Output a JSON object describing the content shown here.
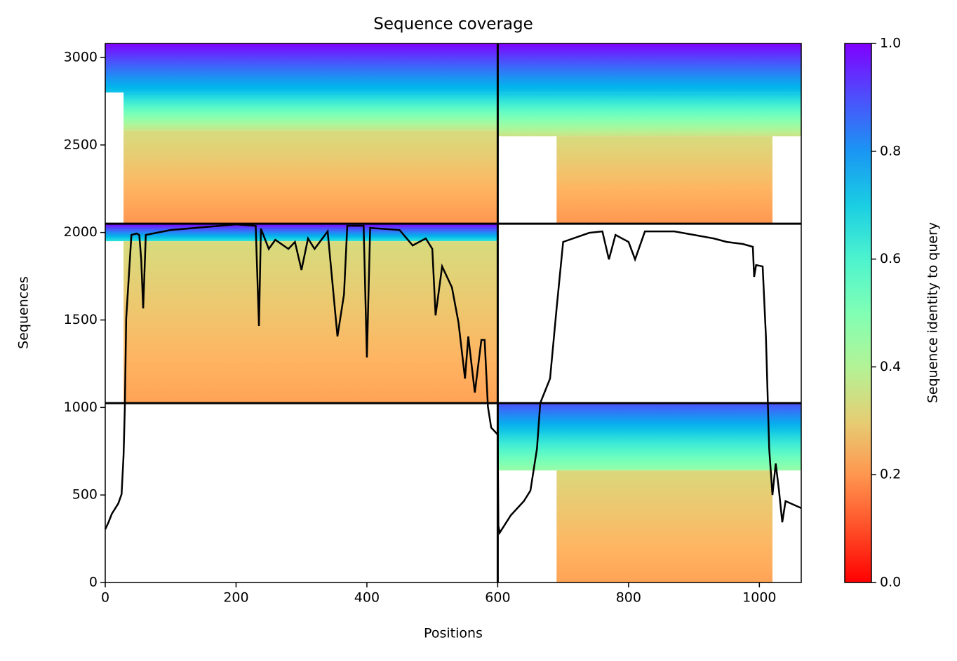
{
  "chart_data": {
    "type": "msa_coverage",
    "title": "Sequence coverage",
    "xlabel": "Positions",
    "ylabel": "Sequences",
    "xlim": [
      0,
      1064
    ],
    "ylim": [
      0,
      3080
    ],
    "xticks": [
      0,
      200,
      400,
      600,
      800,
      1000
    ],
    "yticks": [
      0,
      500,
      1000,
      1500,
      2000,
      2500,
      3000
    ],
    "colorbar": {
      "label": "Sequence identity to query",
      "clim": [
        0,
        1
      ],
      "colormap": "rainbow_r",
      "ticks": [
        {
          "value": 0,
          "label": "0.0"
        },
        {
          "value": 0.2,
          "label": "0.2"
        },
        {
          "value": 0.4,
          "label": "0.4"
        },
        {
          "value": 0.6,
          "label": "0.6"
        },
        {
          "value": 0.8,
          "label": "0.8"
        },
        {
          "value": 1,
          "label": "1.0"
        }
      ]
    },
    "blocks": [
      {
        "x": [
          0,
          1064
        ],
        "y": [
          2800,
          3080
        ],
        "identity": [
          0.72,
          1.0
        ]
      },
      {
        "x": [
          28,
          600
        ],
        "y": [
          2580,
          2800
        ],
        "identity": [
          0.35,
          0.72
        ]
      },
      {
        "x": [
          28,
          600
        ],
        "y": [
          2050,
          2580
        ],
        "identity": [
          0.2,
          0.33
        ]
      },
      {
        "x": [
          600,
          1064
        ],
        "y": [
          2550,
          2800
        ],
        "identity": [
          0.35,
          0.72
        ]
      },
      {
        "x": [
          690,
          1020
        ],
        "y": [
          2050,
          2550
        ],
        "identity": [
          0.2,
          0.33
        ]
      },
      {
        "x": [
          0,
          600
        ],
        "y": [
          1950,
          2050
        ],
        "identity": [
          0.65,
          1.0
        ]
      },
      {
        "x": [
          28,
          600
        ],
        "y": [
          1025,
          1950
        ],
        "identity": [
          0.22,
          0.33
        ]
      },
      {
        "x": [
          600,
          1064
        ],
        "y": [
          640,
          1025
        ],
        "identity": [
          0.45,
          0.9
        ]
      },
      {
        "x": [
          690,
          1020
        ],
        "y": [
          0,
          640
        ],
        "identity": [
          0.22,
          0.32
        ]
      }
    ],
    "dividers": {
      "x": [
        600
      ],
      "y": [
        1025,
        2050
      ]
    },
    "coverage": {
      "color": "#000000",
      "x": [
        0,
        5,
        10,
        20,
        25,
        28,
        30,
        32,
        40,
        48,
        52,
        55,
        58,
        62,
        100,
        200,
        230,
        235,
        238,
        250,
        260,
        280,
        290,
        300,
        310,
        320,
        340,
        345,
        355,
        365,
        370,
        395,
        400,
        405,
        450,
        470,
        480,
        490,
        500,
        505,
        515,
        530,
        540,
        550,
        555,
        565,
        575,
        580,
        585,
        590,
        600,
        601,
        603,
        620,
        640,
        650,
        660,
        665,
        680,
        690,
        700,
        740,
        760,
        770,
        780,
        800,
        810,
        825,
        870,
        900,
        930,
        950,
        975,
        990,
        992,
        995,
        1005,
        1010,
        1015,
        1020,
        1025,
        1030,
        1035,
        1040,
        1064
      ],
      "values": [
        304,
        344,
        392,
        452,
        505,
        725,
        1005,
        1506,
        1986,
        1994,
        1986,
        1846,
        1566,
        1986,
        2014,
        2046,
        2038,
        1466,
        2022,
        1906,
        1958,
        1906,
        1946,
        1786,
        1966,
        1906,
        2006,
        1806,
        1406,
        1646,
        2038,
        2038,
        1286,
        2026,
        2014,
        1926,
        1946,
        1966,
        1906,
        1526,
        1806,
        1686,
        1486,
        1165,
        1406,
        1085,
        1386,
        1386,
        1005,
        885,
        845,
        324,
        284,
        384,
        465,
        525,
        765,
        1025,
        1165,
        1566,
        1946,
        1998,
        2006,
        1846,
        1986,
        1946,
        1846,
        2006,
        2006,
        1986,
        1966,
        1946,
        1934,
        1918,
        1746,
        1814,
        1806,
        1406,
        765,
        500,
        680,
        525,
        344,
        465,
        425
      ]
    }
  }
}
